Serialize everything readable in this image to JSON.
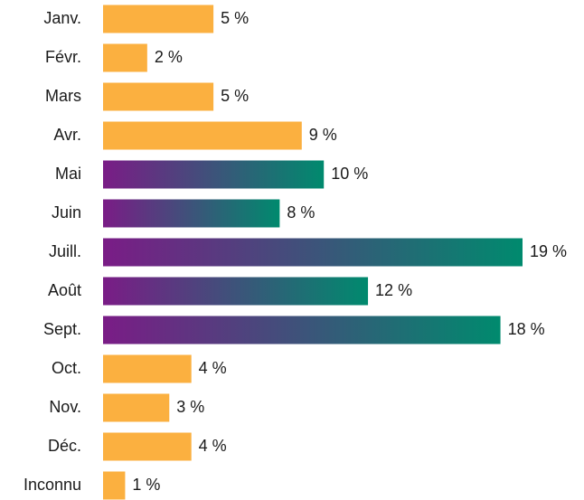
{
  "chart_data": {
    "type": "bar",
    "orientation": "horizontal",
    "categories": [
      "Janv.",
      "Févr.",
      "Mars",
      "Avr.",
      "Mai",
      "Juin",
      "Juill.",
      "Août",
      "Sept.",
      "Oct.",
      "Nov.",
      "Déc.",
      "Inconnu"
    ],
    "values": [
      5,
      2,
      5,
      9,
      10,
      8,
      19,
      12,
      18,
      4,
      3,
      4,
      1
    ],
    "value_labels": [
      "5 %",
      "2 %",
      "5 %",
      "9 %",
      "10 %",
      "8 %",
      "19 %",
      "12 %",
      "18 %",
      "4 %",
      "3 %",
      "4 %",
      "1 %"
    ],
    "color": "#fbb040",
    "highlight": [
      false,
      false,
      false,
      false,
      true,
      true,
      true,
      true,
      true,
      false,
      false,
      false,
      false
    ],
    "highlight_gradient": [
      "#7a1c86",
      "#008a6e"
    ],
    "xlim": [
      0,
      19
    ]
  }
}
